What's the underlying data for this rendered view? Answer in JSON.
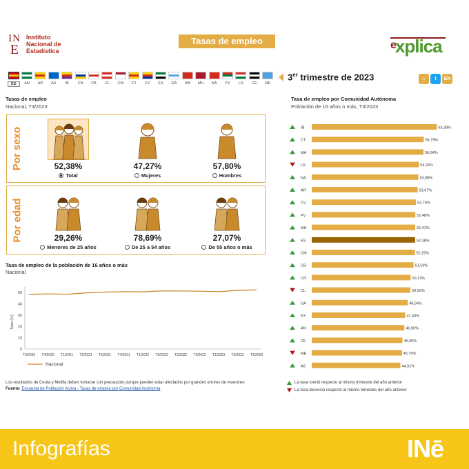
{
  "header": {
    "logo_mark_top": "IN",
    "logo_mark_bottom": "E",
    "logo_line1": "Instituto",
    "logo_line2": "Nacional de",
    "logo_line3": "Estadística",
    "title": "Tasas de empleo",
    "explica_e": "e",
    "explica_word": "xplica"
  },
  "regions": [
    {
      "code": "ES",
      "colors": [
        "#c60b1e",
        "#ffc400",
        "#c60b1e"
      ],
      "active": true
    },
    {
      "code": "AN",
      "colors": [
        "#007a3d",
        "#ffffff",
        "#007a3d"
      ]
    },
    {
      "code": "AR",
      "colors": [
        "#ffd700",
        "#d52b1e",
        "#ffd700"
      ]
    },
    {
      "code": "AS",
      "colors": [
        "#0066cc",
        "#0066cc",
        "#0066cc"
      ]
    },
    {
      "code": "IB",
      "colors": [
        "#ffd700",
        "#d52b1e",
        "#6a2c91"
      ]
    },
    {
      "code": "CN",
      "colors": [
        "#ffffff",
        "#0033a0",
        "#ffcc00"
      ]
    },
    {
      "code": "CB",
      "colors": [
        "#ffffff",
        "#d52b1e",
        "#ffffff"
      ]
    },
    {
      "code": "CL",
      "colors": [
        "#d52b1e",
        "#ffffff",
        "#d52b1e"
      ]
    },
    {
      "code": "CM",
      "colors": [
        "#a6192e",
        "#ffffff",
        "#ffffff"
      ]
    },
    {
      "code": "CT",
      "colors": [
        "#ffd700",
        "#d52b1e",
        "#ffd700"
      ]
    },
    {
      "code": "CV",
      "colors": [
        "#ffd700",
        "#d52b1e",
        "#0033a0"
      ]
    },
    {
      "code": "EX",
      "colors": [
        "#007a3d",
        "#ffffff",
        "#000000"
      ]
    },
    {
      "code": "GA",
      "colors": [
        "#ffffff",
        "#4fa3e0",
        "#ffffff"
      ]
    },
    {
      "code": "MA",
      "colors": [
        "#d52b1e",
        "#d52b1e",
        "#d52b1e"
      ]
    },
    {
      "code": "MU",
      "colors": [
        "#a6192e",
        "#a6192e",
        "#a6192e"
      ]
    },
    {
      "code": "NA",
      "colors": [
        "#d52b1e",
        "#d52b1e",
        "#d52b1e"
      ]
    },
    {
      "code": "PV",
      "colors": [
        "#d52b1e",
        "#007a3d",
        "#ffffff"
      ]
    },
    {
      "code": "LR",
      "colors": [
        "#d52b1e",
        "#ffffff",
        "#007a3d"
      ]
    },
    {
      "code": "CE",
      "colors": [
        "#000000",
        "#ffffff",
        "#000000"
      ]
    },
    {
      "code": "ME",
      "colors": [
        "#4fa3e0",
        "#4fa3e0",
        "#4fa3e0"
      ]
    }
  ],
  "quarter": {
    "number": "3",
    "suffix": "er",
    "rest": " trimestre de 2023"
  },
  "tools": [
    {
      "label": "⌂",
      "color": "#e3ac45"
    },
    {
      "label": "t",
      "color": "#1da1f2"
    },
    {
      "label": "EN",
      "color": "#e3ac45"
    }
  ],
  "left": {
    "title": "Tasas de empleo",
    "subtitle": "Nacional, T3/2023",
    "sex_label": "Por sexo",
    "age_label": "Por edad",
    "sex": [
      {
        "value": "52,38%",
        "label": "Total",
        "selected": true
      },
      {
        "value": "47,27%",
        "label": "Mujeres",
        "selected": false
      },
      {
        "value": "57,80%",
        "label": "Hombres",
        "selected": false
      }
    ],
    "age": [
      {
        "value": "29,26%",
        "label": "Menores de 25 años",
        "selected": false
      },
      {
        "value": "78,69%",
        "label": "De 25 a 54 años",
        "selected": false
      },
      {
        "value": "27,07%",
        "label": "De 55 años o más",
        "selected": false
      }
    ],
    "line_title": "Tasa de empleo de la población de 16 años o más",
    "line_subtitle": "Nacional",
    "footnote": "Los resultados de Ceuta y Melilla deben tomarse con precaución porque pueden estar afectados por grandes errores de muestreo.",
    "source_label": "Fuente:",
    "source_link": "Encuesta de Población Activa - Tasas de empleo por Comunidad Autónoma"
  },
  "right": {
    "title": "Tasa de empleo por Comunidad Autónoma",
    "subtitle": "Población de 16 años o más, T3/2023",
    "legend_up": "La tasa creció respecto al mismo trimestre del año anterior",
    "legend_down": "La tasa decreció respecto al mismo trimestre del año anterior"
  },
  "footer": {
    "text": "Infografías",
    "logo": "INē"
  },
  "colors": {
    "accent": "#e3ac45",
    "highlight": "#9a6400",
    "up": "#3a9a3a",
    "down": "#b01c1c"
  },
  "chart_data": [
    {
      "type": "line",
      "title": "Tasa de empleo de la población de 16 años o más",
      "subtitle": "Nacional",
      "ylabel": "Tasa (%)",
      "ylim": [
        0,
        55
      ],
      "yticks": [
        0,
        10,
        20,
        30,
        40,
        50
      ],
      "categories": [
        "T3/2020",
        "T4/2020",
        "T1/2021",
        "T2/2021",
        "T3/2021",
        "T4/2021",
        "T1/2022",
        "T2/2022",
        "T3/2022",
        "T4/2022",
        "T1/2023",
        "T2/2023",
        "T3/2023"
      ],
      "series": [
        {
          "name": "Nacional",
          "values": [
            48.4,
            48.8,
            48.5,
            49.7,
            50.4,
            50.8,
            50.6,
            51.5,
            51.4,
            51.2,
            50.8,
            51.9,
            52.4
          ]
        }
      ]
    },
    {
      "type": "bar",
      "orientation": "horizontal",
      "title": "Tasa de empleo por Comunidad Autónoma",
      "subtitle": "Población de 16 años o más, T3/2023",
      "xlim": [
        0,
        65
      ],
      "categories": [
        "IB",
        "CT",
        "MA",
        "LR",
        "NA",
        "AR",
        "CV",
        "PV",
        "MU",
        "ES",
        "CM",
        "CB",
        "CN",
        "CL",
        "GA",
        "EX",
        "AN",
        "CE",
        "ME",
        "AS"
      ],
      "values": [
        63.38,
        56.79,
        56.64,
        54.26,
        53.98,
        53.67,
        52.78,
        52.48,
        52.41,
        52.38,
        52.25,
        51.59,
        50.13,
        50.0,
        48.64,
        47.34,
        46.9,
        45.95,
        45.7,
        44.91
      ],
      "labels": [
        "63,38%",
        "56,79%",
        "56,64%",
        "54,26%",
        "53,98%",
        "53,67%",
        "52,78%",
        "52,48%",
        "52,41%",
        "52,38%",
        "52,25%",
        "51,59%",
        "50,13%",
        "50,00%",
        "48,64%",
        "47,34%",
        "46,90%",
        "45,95%",
        "45,70%",
        "44,91%"
      ],
      "trend": [
        "up",
        "up",
        "up",
        "down",
        "up",
        "up",
        "up",
        "up",
        "up",
        "up",
        "up",
        "up",
        "up",
        "down",
        "up",
        "up",
        "up",
        "up",
        "down",
        "up"
      ],
      "highlight": "ES"
    }
  ]
}
